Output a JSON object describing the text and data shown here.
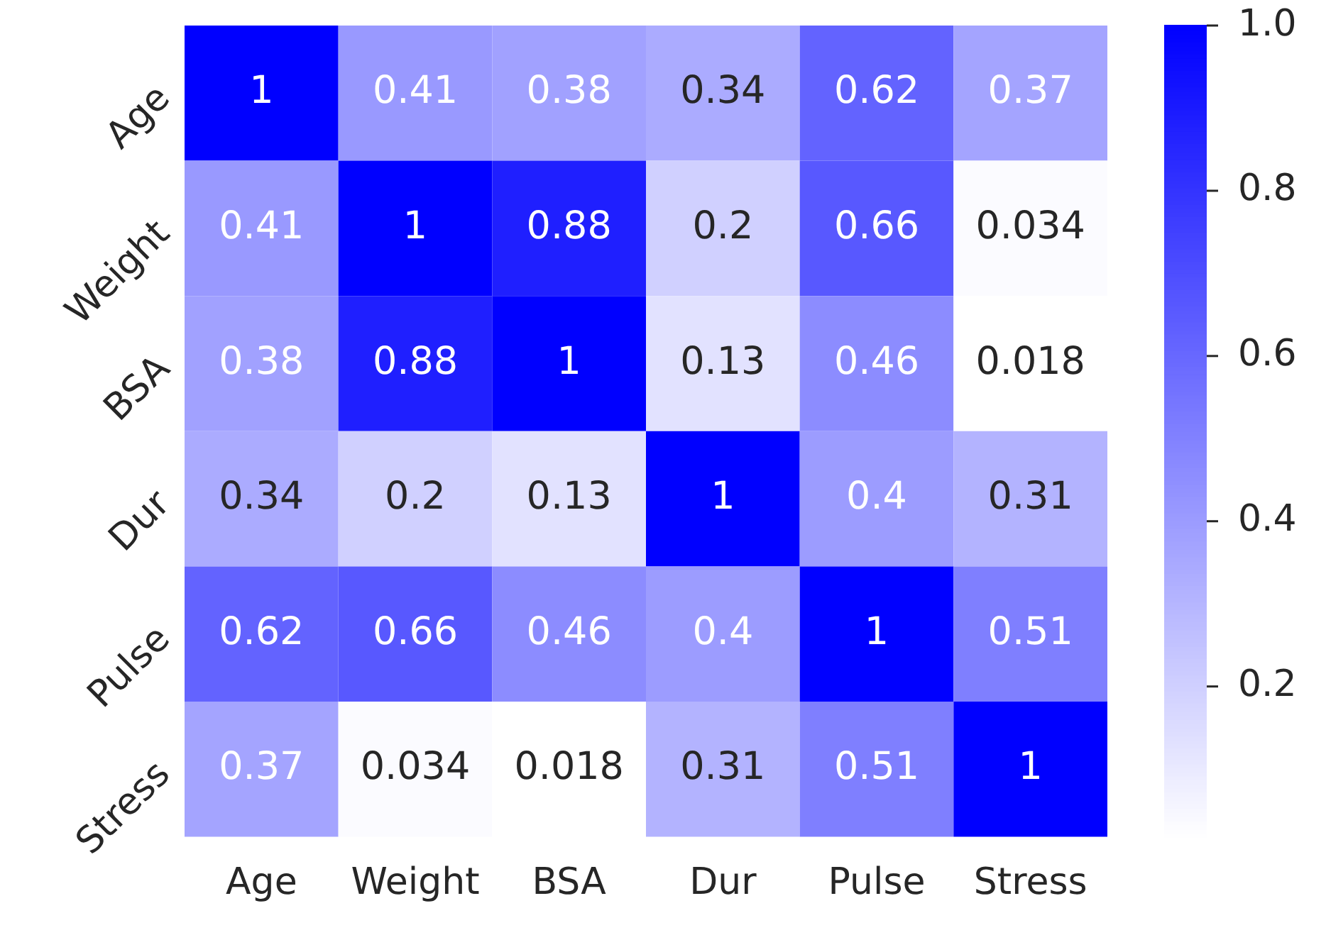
{
  "chart_data": {
    "type": "heatmap",
    "categories": [
      "Age",
      "Weight",
      "BSA",
      "Dur",
      "Pulse",
      "Stress"
    ],
    "y_categories": [
      "Age",
      "Weight",
      "BSA",
      "Dur",
      "Pulse",
      "Stress"
    ],
    "cells": [
      [
        1,
        0.41,
        0.38,
        0.34,
        0.62,
        0.37
      ],
      [
        0.41,
        1,
        0.88,
        0.2,
        0.66,
        0.034
      ],
      [
        0.38,
        0.88,
        1,
        0.13,
        0.46,
        0.018
      ],
      [
        0.34,
        0.2,
        0.13,
        1,
        0.4,
        0.31
      ],
      [
        0.62,
        0.66,
        0.46,
        0.4,
        1,
        0.51
      ],
      [
        0.37,
        0.034,
        0.018,
        0.31,
        0.51,
        1
      ]
    ],
    "data_labels": true,
    "clim": [
      0.018,
      1
    ],
    "cticks": [
      0.2,
      0.4,
      0.6,
      0.8,
      {
        "value": 1,
        "label": "1.0"
      }
    ],
    "colors": [
      "#ffffff",
      "#0000ff"
    ]
  }
}
